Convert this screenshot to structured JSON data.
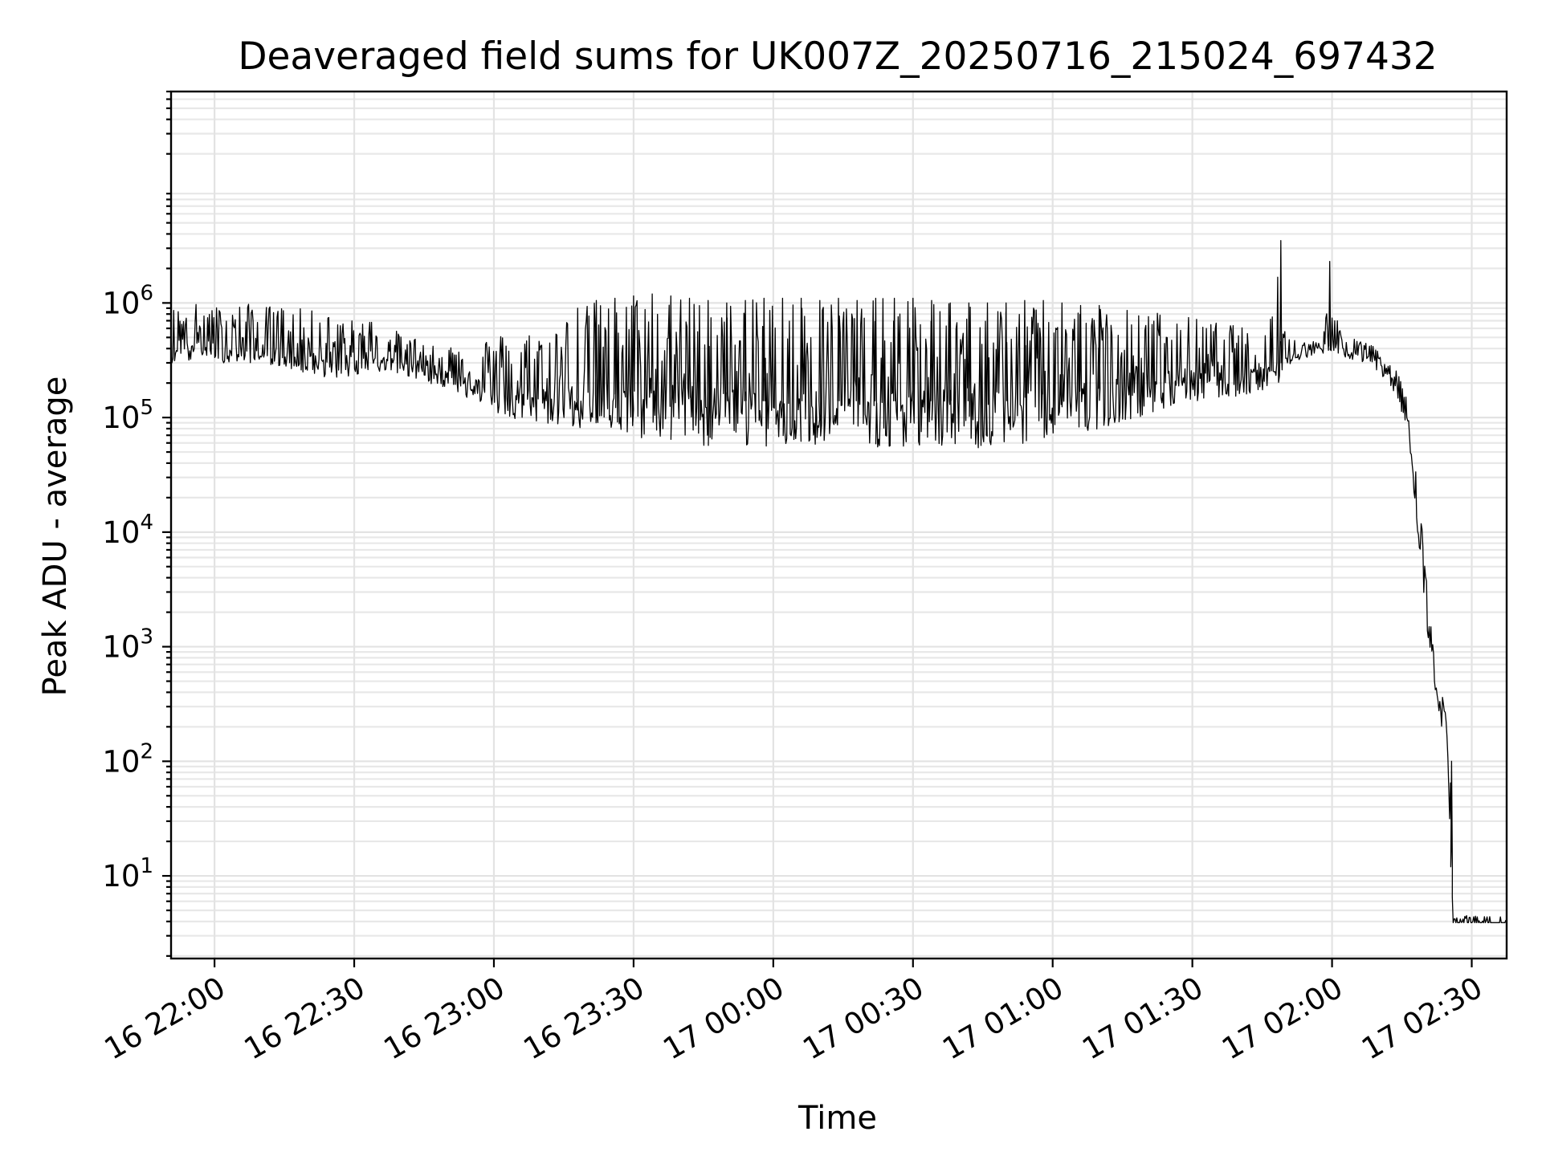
{
  "chart_data": {
    "type": "line",
    "title": "Deaveraged field sums for UK007Z_20250716_215024_697432",
    "xlabel": "Time",
    "ylabel": "Peak ADU - average",
    "x_scale": "time",
    "y_scale": "log",
    "xlim": [
      "2025-07-16T21:50:40",
      "2025-07-17T02:37:30"
    ],
    "ylim": [
      1.9,
      70000000
    ],
    "grid": {
      "major": true,
      "minor_y": true
    },
    "x_ticks": [
      {
        "value": "2025-07-16T22:00:00",
        "label": "16 22:00"
      },
      {
        "value": "2025-07-16T22:30:00",
        "label": "16 22:30"
      },
      {
        "value": "2025-07-16T23:00:00",
        "label": "16 23:00"
      },
      {
        "value": "2025-07-16T23:30:00",
        "label": "16 23:30"
      },
      {
        "value": "2025-07-17T00:00:00",
        "label": "17 00:00"
      },
      {
        "value": "2025-07-17T00:30:00",
        "label": "17 00:30"
      },
      {
        "value": "2025-07-17T01:00:00",
        "label": "17 01:00"
      },
      {
        "value": "2025-07-17T01:30:00",
        "label": "17 01:30"
      },
      {
        "value": "2025-07-17T02:00:00",
        "label": "17 02:00"
      },
      {
        "value": "2025-07-17T02:30:00",
        "label": "17 02:30"
      }
    ],
    "y_ticks": [
      {
        "value": 10,
        "base": "10",
        "exp": "1"
      },
      {
        "value": 100,
        "base": "10",
        "exp": "2"
      },
      {
        "value": 1000,
        "base": "10",
        "exp": "3"
      },
      {
        "value": 10000,
        "base": "10",
        "exp": "4"
      },
      {
        "value": 100000,
        "base": "10",
        "exp": "5"
      },
      {
        "value": 1000000,
        "base": "10",
        "exp": "6"
      }
    ],
    "series": [
      {
        "color": "#000000",
        "x": [
          "2025-07-16T21:50:40",
          "2025-07-16T21:54:00",
          "2025-07-16T21:58:00",
          "2025-07-16T22:02:00",
          "2025-07-16T22:06:00",
          "2025-07-16T22:10:00",
          "2025-07-16T22:14:00",
          "2025-07-16T22:18:00",
          "2025-07-16T22:22:00",
          "2025-07-16T22:26:00",
          "2025-07-16T22:30:00",
          "2025-07-16T22:34:00",
          "2025-07-16T22:38:00",
          "2025-07-16T22:42:00",
          "2025-07-16T22:46:00",
          "2025-07-16T22:50:00",
          "2025-07-16T22:54:00",
          "2025-07-16T22:58:00",
          "2025-07-16T23:02:00",
          "2025-07-16T23:06:00",
          "2025-07-16T23:10:00",
          "2025-07-16T23:14:00",
          "2025-07-16T23:18:00",
          "2025-07-16T23:22:00",
          "2025-07-16T23:26:00",
          "2025-07-16T23:30:00",
          "2025-07-16T23:34:00",
          "2025-07-16T23:38:00",
          "2025-07-16T23:42:00",
          "2025-07-16T23:46:00",
          "2025-07-16T23:50:00",
          "2025-07-16T23:54:00",
          "2025-07-16T23:58:00",
          "2025-07-17T00:02:00",
          "2025-07-17T00:06:00",
          "2025-07-17T00:10:00",
          "2025-07-17T00:14:00",
          "2025-07-17T00:18:00",
          "2025-07-17T00:22:00",
          "2025-07-17T00:26:00",
          "2025-07-17T00:30:00",
          "2025-07-17T00:34:00",
          "2025-07-17T00:38:00",
          "2025-07-17T00:42:00",
          "2025-07-17T00:46:00",
          "2025-07-17T00:50:00",
          "2025-07-17T00:54:00",
          "2025-07-17T00:58:00",
          "2025-07-17T01:02:00",
          "2025-07-17T01:06:00",
          "2025-07-17T01:10:00",
          "2025-07-17T01:14:00",
          "2025-07-17T01:18:00",
          "2025-07-17T01:22:00",
          "2025-07-17T01:26:00",
          "2025-07-17T01:30:00",
          "2025-07-17T01:34:00",
          "2025-07-17T01:38:00",
          "2025-07-17T01:42:00",
          "2025-07-17T01:46:00",
          "2025-07-17T01:49:00",
          "2025-07-17T01:50:00",
          "2025-07-17T01:54:00",
          "2025-07-17T01:58:00",
          "2025-07-17T01:59:30",
          "2025-07-17T02:02:00",
          "2025-07-17T02:06:00",
          "2025-07-17T02:10:00",
          "2025-07-17T02:12:00",
          "2025-07-17T02:14:00",
          "2025-07-17T02:16:00",
          "2025-07-17T02:17:00",
          "2025-07-17T02:18:00",
          "2025-07-17T02:19:00",
          "2025-07-17T02:20:00",
          "2025-07-17T02:21:00",
          "2025-07-17T02:22:00",
          "2025-07-17T02:23:00",
          "2025-07-17T02:24:00",
          "2025-07-17T02:25:00",
          "2025-07-17T02:25:40",
          "2025-07-17T02:26:00",
          "2025-07-17T02:30:00",
          "2025-07-17T02:35:00",
          "2025-07-17T02:37:30"
        ],
        "low": [
          300000,
          300000,
          350000,
          300000,
          300000,
          300000,
          280000,
          250000,
          230000,
          220000,
          230000,
          250000,
          250000,
          220000,
          200000,
          180000,
          150000,
          130000,
          100000,
          90000,
          90000,
          85000,
          80000,
          75000,
          70000,
          65000,
          65000,
          60000,
          60000,
          55000,
          55000,
          55000,
          55000,
          55000,
          55000,
          55000,
          55000,
          55000,
          55000,
          55000,
          55000,
          55000,
          55000,
          55000,
          50000,
          55000,
          60000,
          65000,
          70000,
          75000,
          80000,
          90000,
          100000,
          110000,
          120000,
          130000,
          140000,
          150000,
          160000,
          170000,
          170000,
          280000,
          330000,
          360000,
          380000,
          330000,
          300000,
          250000,
          200000,
          150000,
          80000,
          40000,
          15000,
          5000,
          2000,
          800,
          400,
          250,
          150,
          60,
          10,
          3.9,
          3.9,
          3.9,
          3.9
        ],
        "high": [
          900000,
          1000000,
          1000000,
          900000,
          1000000,
          950000,
          950000,
          900000,
          850000,
          800000,
          700000,
          750000,
          600000,
          500000,
          500000,
          450000,
          450000,
          500000,
          550000,
          550000,
          600000,
          700000,
          900000,
          1050000,
          1100000,
          1150000,
          1200000,
          1150000,
          1100000,
          1050000,
          1000000,
          1050000,
          1100000,
          1100000,
          1100000,
          1050000,
          1100000,
          1050000,
          1100000,
          1100000,
          1100000,
          1050000,
          1000000,
          1000000,
          1000000,
          1000000,
          1050000,
          1050000,
          1000000,
          950000,
          950000,
          900000,
          900000,
          850000,
          800000,
          750000,
          700000,
          650000,
          600000,
          550000,
          3500000,
          500000,
          480000,
          450000,
          2300000,
          500000,
          480000,
          400000,
          300000,
          250000,
          150000,
          80000,
          40000,
          15000,
          6000,
          2500,
          1000,
          600,
          400,
          150,
          100,
          4.5,
          4.5,
          4.5,
          4.5
        ],
        "base": [
          420000,
          450000,
          460000,
          430000,
          400000,
          390000,
          380000,
          360000,
          330000,
          310000,
          320000,
          340000,
          330000,
          300000,
          270000,
          240000,
          210000,
          190000,
          170000,
          160000,
          150000,
          150000,
          150000,
          160000,
          160000,
          170000,
          170000,
          160000,
          150000,
          140000,
          140000,
          140000,
          140000,
          140000,
          140000,
          140000,
          140000,
          140000,
          140000,
          140000,
          140000,
          140000,
          140000,
          140000,
          130000,
          140000,
          150000,
          160000,
          170000,
          170000,
          180000,
          190000,
          200000,
          210000,
          220000,
          230000,
          240000,
          250000,
          260000,
          280000,
          300000,
          340000,
          380000,
          410000,
          420000,
          400000,
          370000,
          320000,
          260000,
          190000,
          110000,
          50000,
          20000,
          8000,
          3000,
          1100,
          550,
          330,
          200,
          100,
          12,
          3.9,
          3.9,
          3.9,
          3.9
        ]
      }
    ]
  }
}
